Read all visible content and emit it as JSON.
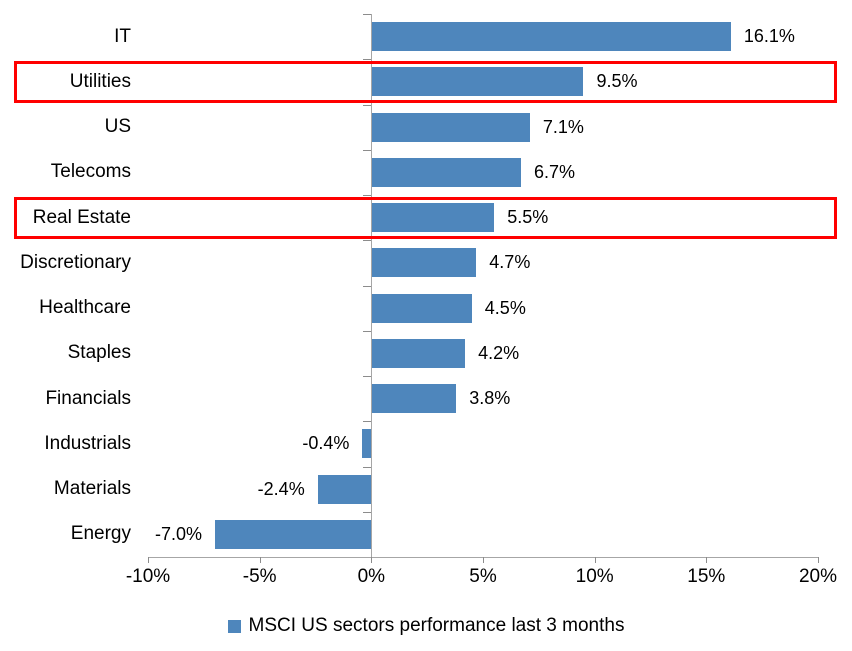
{
  "chart_data": {
    "type": "bar",
    "orientation": "horizontal",
    "title": "",
    "categories": [
      "IT",
      "Utilities",
      "US",
      "Telecoms",
      "Real Estate",
      "Discretionary",
      "Healthcare",
      "Staples",
      "Financials",
      "Industrials",
      "Materials",
      "Energy"
    ],
    "values": [
      16.1,
      9.5,
      7.1,
      6.7,
      5.5,
      4.7,
      4.5,
      4.2,
      3.8,
      -0.4,
      -2.4,
      -7.0
    ],
    "data_labels": [
      "16.1%",
      "9.5%",
      "7.1%",
      "6.7%",
      "5.5%",
      "4.7%",
      "4.5%",
      "4.2%",
      "3.8%",
      "-0.4%",
      "-2.4%",
      "-7.0%"
    ],
    "highlighted_categories": [
      "Utilities",
      "Real Estate"
    ],
    "x_axis": {
      "min": -10,
      "max": 20,
      "tick_values": [
        -10,
        -5,
        0,
        5,
        10,
        15,
        20
      ],
      "tick_labels": [
        "-10%",
        "-5%",
        "0%",
        "5%",
        "10%",
        "15%",
        "20%"
      ]
    },
    "grid": false,
    "legend": {
      "position": "bottom",
      "label": "MSCI US sectors performance last 3 months"
    },
    "colors": {
      "bar": "#4E86BC",
      "highlight_box": "#FF0000",
      "axis_line": "#A6A6A6",
      "tick": "#8C8C8C",
      "text": "#000000"
    }
  }
}
